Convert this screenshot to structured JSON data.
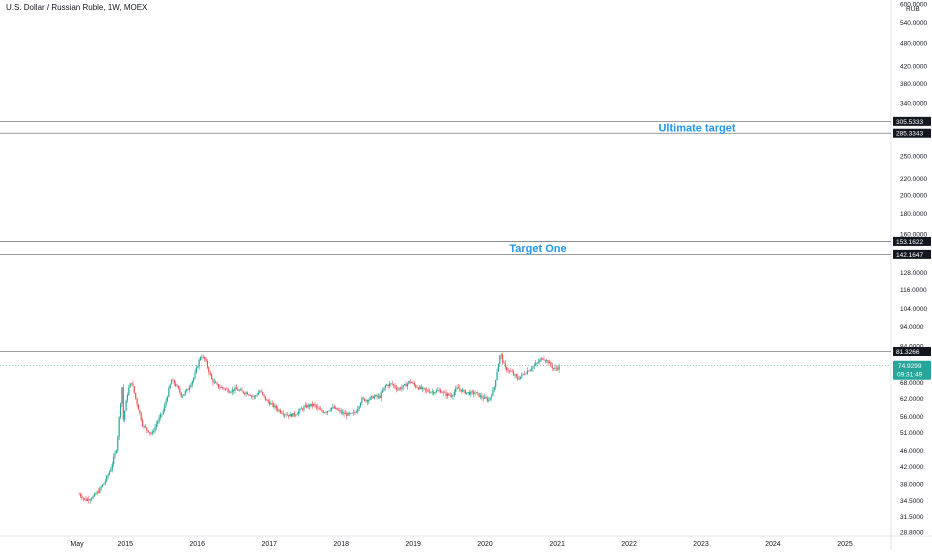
{
  "header": {
    "symbol_title": "U.S. Dollar / Russian Ruble, 1W, MOEX"
  },
  "colors": {
    "up": "#26a69a",
    "down": "#ef5350",
    "annotation_text": "#2196f3",
    "hline": "#787b86",
    "price_tag": "#26a69a",
    "level_tag": "#131722"
  },
  "chart_data": {
    "type": "candlestick",
    "symbol": "USDRUB",
    "interval": "1W",
    "exchange": "MOEX",
    "y_scale": "log",
    "currency_label": "RUB",
    "ylim": [
      28.8,
      600
    ],
    "y_ticks": [
      {
        "value": 600,
        "label": "600.0000"
      },
      {
        "value": 540,
        "label": "540.0000"
      },
      {
        "value": 480,
        "label": "480.0000"
      },
      {
        "value": 420,
        "label": "420.0000"
      },
      {
        "value": 380,
        "label": "380.0000"
      },
      {
        "value": 340,
        "label": "340.0000"
      },
      {
        "value": 250,
        "label": "250.0000"
      },
      {
        "value": 220,
        "label": "220.0000"
      },
      {
        "value": 200,
        "label": "200.0000"
      },
      {
        "value": 180,
        "label": "180.0000"
      },
      {
        "value": 160,
        "label": "160.0000"
      },
      {
        "value": 128,
        "label": "128.0000"
      },
      {
        "value": 116,
        "label": "116.0000"
      },
      {
        "value": 104,
        "label": "104.0000"
      },
      {
        "value": 94,
        "label": "94.0000"
      },
      {
        "value": 84,
        "label": "84.0000"
      },
      {
        "value": 68,
        "label": "68.0000"
      },
      {
        "value": 62,
        "label": "62.0000"
      },
      {
        "value": 56,
        "label": "56.0000"
      },
      {
        "value": 51,
        "label": "51.0000"
      },
      {
        "value": 46,
        "label": "46.0000"
      },
      {
        "value": 42,
        "label": "42.0000"
      },
      {
        "value": 38,
        "label": "38.0000"
      },
      {
        "value": 34.5,
        "label": "34.5000"
      },
      {
        "value": 31.5,
        "label": "31.5000"
      },
      {
        "value": 28.8,
        "label": "28.8000"
      }
    ],
    "x_ticks": [
      {
        "date": "2014-05",
        "label": "May"
      },
      {
        "date": "2015-01",
        "label": "2015"
      },
      {
        "date": "2016-01",
        "label": "2016"
      },
      {
        "date": "2017-01",
        "label": "2017"
      },
      {
        "date": "2018-01",
        "label": "2018"
      },
      {
        "date": "2019-01",
        "label": "2019"
      },
      {
        "date": "2020-01",
        "label": "2020"
      },
      {
        "date": "2021-01",
        "label": "2021"
      },
      {
        "date": "2022-01",
        "label": "2022"
      },
      {
        "date": "2023-01",
        "label": "2023"
      },
      {
        "date": "2024-01",
        "label": "2024"
      },
      {
        "date": "2025-01",
        "label": "2025"
      }
    ],
    "horizontal_lines": [
      {
        "value": 305.5333,
        "label": "305.5333"
      },
      {
        "value": 285.3343,
        "label": "285.3343"
      },
      {
        "value": 153.1622,
        "label": "153.1622"
      },
      {
        "value": 142.1647,
        "label": "142.1647"
      },
      {
        "value": 81.3266,
        "label": "81.3266"
      }
    ],
    "annotations": [
      {
        "text": "Ultimate target",
        "value": 295
      },
      {
        "text": "Target One",
        "value": 147.5
      }
    ],
    "last_price": {
      "value": 74.9299,
      "label": "74.9299",
      "countdown": "09:31:49"
    },
    "price_path": [
      {
        "date": "2014-05-12",
        "close": 35.8
      },
      {
        "date": "2014-06-15",
        "close": 34.6
      },
      {
        "date": "2014-07-20",
        "close": 35.2
      },
      {
        "date": "2014-08-20",
        "close": 36.5
      },
      {
        "date": "2014-09-20",
        "close": 38.5
      },
      {
        "date": "2014-10-20",
        "close": 41.5
      },
      {
        "date": "2014-11-20",
        "close": 47.0
      },
      {
        "date": "2014-12-16",
        "close": 67.0
      },
      {
        "date": "2014-12-22",
        "close": 55.0
      },
      {
        "date": "2015-01-15",
        "close": 65.0
      },
      {
        "date": "2015-02-01",
        "close": 68.5
      },
      {
        "date": "2015-02-25",
        "close": 61.5
      },
      {
        "date": "2015-04-01",
        "close": 53.0
      },
      {
        "date": "2015-05-15",
        "close": 50.5
      },
      {
        "date": "2015-06-15",
        "close": 54.5
      },
      {
        "date": "2015-07-15",
        "close": 58.0
      },
      {
        "date": "2015-08-24",
        "close": 69.0
      },
      {
        "date": "2015-09-15",
        "close": 67.0
      },
      {
        "date": "2015-10-15",
        "close": 63.0
      },
      {
        "date": "2015-11-15",
        "close": 65.5
      },
      {
        "date": "2015-12-15",
        "close": 70.0
      },
      {
        "date": "2016-01-20",
        "close": 79.5
      },
      {
        "date": "2016-02-10",
        "close": 77.5
      },
      {
        "date": "2016-03-15",
        "close": 69.0
      },
      {
        "date": "2016-04-15",
        "close": 66.5
      },
      {
        "date": "2016-05-15",
        "close": 65.8
      },
      {
        "date": "2016-06-15",
        "close": 64.8
      },
      {
        "date": "2016-07-15",
        "close": 65.5
      },
      {
        "date": "2016-08-15",
        "close": 64.5
      },
      {
        "date": "2016-09-15",
        "close": 64.0
      },
      {
        "date": "2016-10-15",
        "close": 62.5
      },
      {
        "date": "2016-11-15",
        "close": 64.8
      },
      {
        "date": "2016-12-15",
        "close": 61.5
      },
      {
        "date": "2017-01-15",
        "close": 59.8
      },
      {
        "date": "2017-02-15",
        "close": 58.2
      },
      {
        "date": "2017-03-15",
        "close": 57.0
      },
      {
        "date": "2017-04-15",
        "close": 56.3
      },
      {
        "date": "2017-05-15",
        "close": 56.8
      },
      {
        "date": "2017-06-15",
        "close": 58.5
      },
      {
        "date": "2017-07-15",
        "close": 59.5
      },
      {
        "date": "2017-08-15",
        "close": 59.8
      },
      {
        "date": "2017-09-15",
        "close": 57.8
      },
      {
        "date": "2017-10-15",
        "close": 57.5
      },
      {
        "date": "2017-11-15",
        "close": 59.0
      },
      {
        "date": "2017-12-15",
        "close": 58.0
      },
      {
        "date": "2018-01-15",
        "close": 56.8
      },
      {
        "date": "2018-02-15",
        "close": 56.5
      },
      {
        "date": "2018-03-15",
        "close": 57.3
      },
      {
        "date": "2018-04-15",
        "close": 61.8
      },
      {
        "date": "2018-05-15",
        "close": 61.5
      },
      {
        "date": "2018-06-15",
        "close": 62.8
      },
      {
        "date": "2018-07-15",
        "close": 62.6
      },
      {
        "date": "2018-08-15",
        "close": 67.0
      },
      {
        "date": "2018-09-15",
        "close": 67.5
      },
      {
        "date": "2018-10-15",
        "close": 65.5
      },
      {
        "date": "2018-11-15",
        "close": 66.5
      },
      {
        "date": "2018-12-15",
        "close": 68.5
      },
      {
        "date": "2019-01-15",
        "close": 66.5
      },
      {
        "date": "2019-02-15",
        "close": 65.5
      },
      {
        "date": "2019-03-15",
        "close": 64.8
      },
      {
        "date": "2019-04-15",
        "close": 64.5
      },
      {
        "date": "2019-05-15",
        "close": 65.0
      },
      {
        "date": "2019-06-15",
        "close": 63.5
      },
      {
        "date": "2019-07-15",
        "close": 63.2
      },
      {
        "date": "2019-08-15",
        "close": 66.0
      },
      {
        "date": "2019-09-15",
        "close": 64.5
      },
      {
        "date": "2019-10-15",
        "close": 64.0
      },
      {
        "date": "2019-11-15",
        "close": 64.0
      },
      {
        "date": "2019-12-15",
        "close": 62.5
      },
      {
        "date": "2020-01-20",
        "close": 61.5
      },
      {
        "date": "2020-02-15",
        "close": 65.5
      },
      {
        "date": "2020-03-19",
        "close": 80.5
      },
      {
        "date": "2020-04-10",
        "close": 74.0
      },
      {
        "date": "2020-05-15",
        "close": 72.0
      },
      {
        "date": "2020-06-15",
        "close": 69.5
      },
      {
        "date": "2020-07-15",
        "close": 71.5
      },
      {
        "date": "2020-08-15",
        "close": 73.5
      },
      {
        "date": "2020-09-15",
        "close": 75.5
      },
      {
        "date": "2020-10-20",
        "close": 78.5
      },
      {
        "date": "2020-11-10",
        "close": 77.0
      },
      {
        "date": "2020-11-25",
        "close": 75.8
      },
      {
        "date": "2020-12-15",
        "close": 73.5
      },
      {
        "date": "2021-01-05",
        "close": 74.0
      },
      {
        "date": "2021-01-15",
        "close": 74.9299
      }
    ]
  }
}
